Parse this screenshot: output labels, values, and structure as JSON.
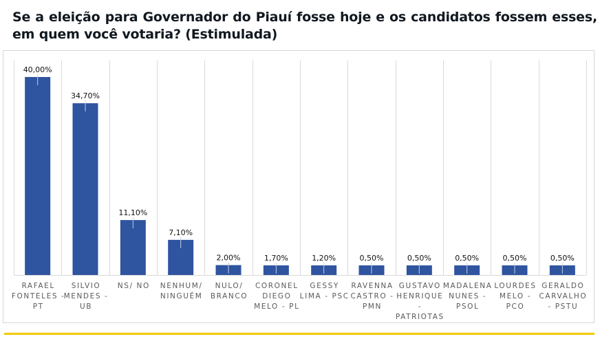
{
  "title": "Se a eleição para Governador do Piauí fosse hoje e os candidatos fossem esses, em quem você votaria? (Estimulada)",
  "chart_data": {
    "type": "bar",
    "title": "Se a eleição para Governador do Piauí fosse hoje e os candidatos fossem esses, em quem você votaria? (Estimulada)",
    "xlabel": "",
    "ylabel": "",
    "ylim": [
      0,
      45
    ],
    "grid": "vertical",
    "legend": "none",
    "bar_color": "#2f54a0",
    "categories": [
      [
        "RAFAEL",
        "FONTELES -",
        "PT"
      ],
      [
        "SILVIO",
        "MENDES -",
        "UB"
      ],
      [
        "NS/ NO"
      ],
      [
        "NENHUM/",
        "NINGUÉM"
      ],
      [
        "NULO/",
        "BRANCO"
      ],
      [
        "CORONEL",
        "DIEGO",
        "MELO - PL"
      ],
      [
        "GESSY",
        "LIMA - PSC"
      ],
      [
        "RAVENNA",
        "CASTRO -",
        "PMN"
      ],
      [
        "GUSTAVO",
        "HENRIQUE",
        "-",
        "PATRIOTAS"
      ],
      [
        "MADALENA",
        "NUNES -",
        "PSOL"
      ],
      [
        "LOURDES",
        "MELO -",
        "PCO"
      ],
      [
        "GERALDO",
        "CARVALHO",
        "- PSTU"
      ]
    ],
    "values": [
      40.0,
      34.7,
      11.1,
      7.1,
      2.0,
      1.7,
      1.2,
      0.5,
      0.5,
      0.5,
      0.5,
      0.5
    ],
    "labels": [
      "40,00%",
      "34,70%",
      "11,10%",
      "7,10%",
      "2,00%",
      "1,70%",
      "1,20%",
      "0,50%",
      "0,50%",
      "0,50%",
      "0,50%",
      "0,50%"
    ]
  }
}
